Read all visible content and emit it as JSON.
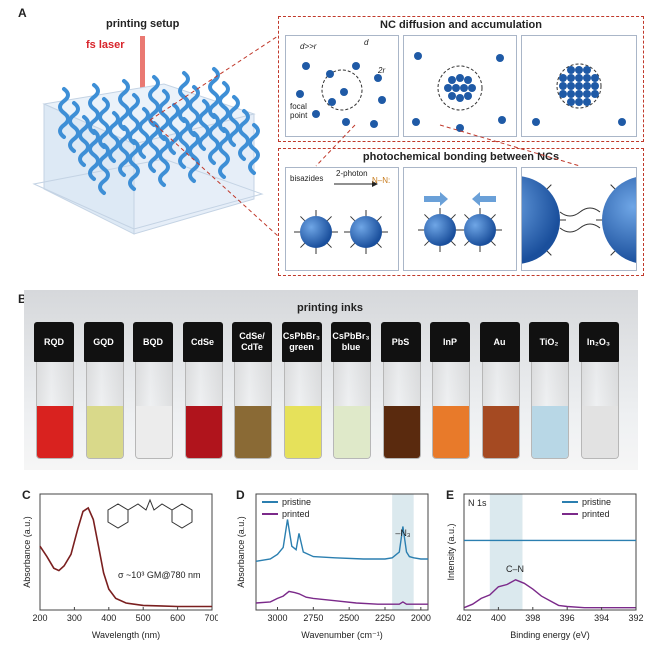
{
  "panel_a": {
    "letter": "A",
    "setup_title": "printing setup",
    "laser_label": "fs laser",
    "diffusion_title": "NC diffusion and accumulation",
    "d_gt_r": "d>>r",
    "d": "d",
    "two_r": "2r",
    "focal_point": "focal\npoint",
    "bonding_title": "photochemical bonding between NCs",
    "bisazides": "bisazides",
    "two_photon": "2-photon",
    "nitrene": "N–N:"
  },
  "panel_b": {
    "letter": "B",
    "title": "printing inks",
    "vials": [
      {
        "label": "RQD",
        "color": "#d9221f"
      },
      {
        "label": "GQD",
        "color": "#d9d98a"
      },
      {
        "label": "BQD",
        "color": "#ececec"
      },
      {
        "label": "CdSe",
        "color": "#b0141c"
      },
      {
        "label": "CdSe/\nCdTe",
        "color": "#8a6a35"
      },
      {
        "label": "CsPbBr₃\ngreen",
        "color": "#e6e15a"
      },
      {
        "label": "CsPbBr₃\nblue",
        "color": "#dfe9c9"
      },
      {
        "label": "PbS",
        "color": "#5a2a0e"
      },
      {
        "label": "InP",
        "color": "#e87a2a"
      },
      {
        "label": "Au",
        "color": "#a54a22"
      },
      {
        "label": "TiO₂",
        "color": "#b8d7e6"
      },
      {
        "label": "In₂O₃",
        "color": "#e2e2e2"
      }
    ]
  },
  "panel_c": {
    "letter": "C",
    "xlabel": "Wavelength (nm)",
    "ylabel": "Absorbance (a.u.)",
    "annotation": "σ ~10³ GM@780 nm",
    "xticks": [
      "200",
      "300",
      "400",
      "500",
      "600",
      "700"
    ]
  },
  "panel_d": {
    "letter": "D",
    "xlabel": "Wavenumber (cm⁻¹)",
    "ylabel": "Absorbance (a.u.)",
    "peak_label": "–N₃",
    "xticks": [
      "3000",
      "2750",
      "2500",
      "2250",
      "2000"
    ],
    "legend": [
      "pristine",
      "printed"
    ]
  },
  "panel_e": {
    "letter": "E",
    "xlabel": "Binding energy (eV)",
    "ylabel": "Intensity (a.u.)",
    "corner": "N 1s",
    "peak_label": "C–N",
    "xticks": [
      "402",
      "400",
      "398",
      "396",
      "394",
      "392"
    ],
    "legend": [
      "pristine",
      "printed"
    ]
  },
  "colors": {
    "pristine": "#2b7fb0",
    "printed": "#7b2a8a",
    "abs_curve": "#7a1f1f",
    "nc_blue": "#1f5aa6",
    "dashed_red": "#c0392b",
    "highlight": "#dbe9ee"
  },
  "chart_data": [
    {
      "type": "line",
      "panel": "C",
      "xlabel": "Wavelength (nm)",
      "ylabel": "Absorbance (a.u.)",
      "xlim": [
        200,
        700
      ],
      "series": [
        {
          "x": [
            200,
            220,
            240,
            255,
            270,
            290,
            310,
            325,
            340,
            355,
            370,
            385,
            400,
            420,
            450,
            500,
            550,
            600,
            650,
            700
          ],
          "values": [
            0.55,
            0.46,
            0.36,
            0.34,
            0.38,
            0.48,
            0.7,
            0.85,
            0.88,
            0.78,
            0.55,
            0.32,
            0.18,
            0.1,
            0.06,
            0.04,
            0.035,
            0.03,
            0.03,
            0.03
          ]
        }
      ]
    },
    {
      "type": "line",
      "panel": "D",
      "xlabel": "Wavenumber (cm⁻¹)",
      "ylabel": "Absorbance (a.u.)",
      "xlim": [
        3150,
        1950
      ],
      "series": [
        {
          "name": "pristine",
          "x": [
            3150,
            3050,
            3000,
            2960,
            2930,
            2900,
            2870,
            2850,
            2820,
            2750,
            2600,
            2400,
            2250,
            2200,
            2150,
            2125,
            2100,
            2080,
            2050,
            2000,
            1950
          ],
          "values": [
            0.42,
            0.44,
            0.48,
            0.54,
            0.78,
            0.55,
            0.52,
            0.66,
            0.5,
            0.46,
            0.45,
            0.44,
            0.44,
            0.45,
            0.5,
            0.72,
            0.5,
            0.46,
            0.45,
            0.44,
            0.44
          ]
        },
        {
          "name": "printed",
          "x": [
            3150,
            3050,
            3000,
            2960,
            2920,
            2880,
            2850,
            2800,
            2750,
            2600,
            2450,
            2300,
            2200,
            2150,
            2125,
            2100,
            2050,
            2000,
            1950
          ],
          "values": [
            0.06,
            0.07,
            0.1,
            0.12,
            0.16,
            0.15,
            0.14,
            0.11,
            0.1,
            0.08,
            0.06,
            0.05,
            0.05,
            0.05,
            0.07,
            0.05,
            0.05,
            0.05,
            0.05
          ]
        }
      ]
    },
    {
      "type": "line",
      "panel": "E",
      "xlabel": "Binding energy (eV)",
      "ylabel": "Intensity (a.u.)",
      "xlim": [
        402,
        392
      ],
      "series": [
        {
          "name": "pristine",
          "x": [
            402,
            400,
            398,
            396,
            394,
            392
          ],
          "values": [
            0.6,
            0.6,
            0.6,
            0.6,
            0.6,
            0.6
          ]
        },
        {
          "name": "printed",
          "x": [
            402,
            401.5,
            401,
            400.5,
            400,
            399.5,
            399,
            398.5,
            398,
            397.5,
            397,
            396.5,
            396,
            395,
            394,
            393,
            392
          ],
          "values": [
            0.02,
            0.05,
            0.1,
            0.13,
            0.2,
            0.22,
            0.26,
            0.23,
            0.18,
            0.12,
            0.08,
            0.04,
            0.03,
            0.02,
            0.02,
            0.02,
            0.02
          ]
        }
      ]
    }
  ]
}
